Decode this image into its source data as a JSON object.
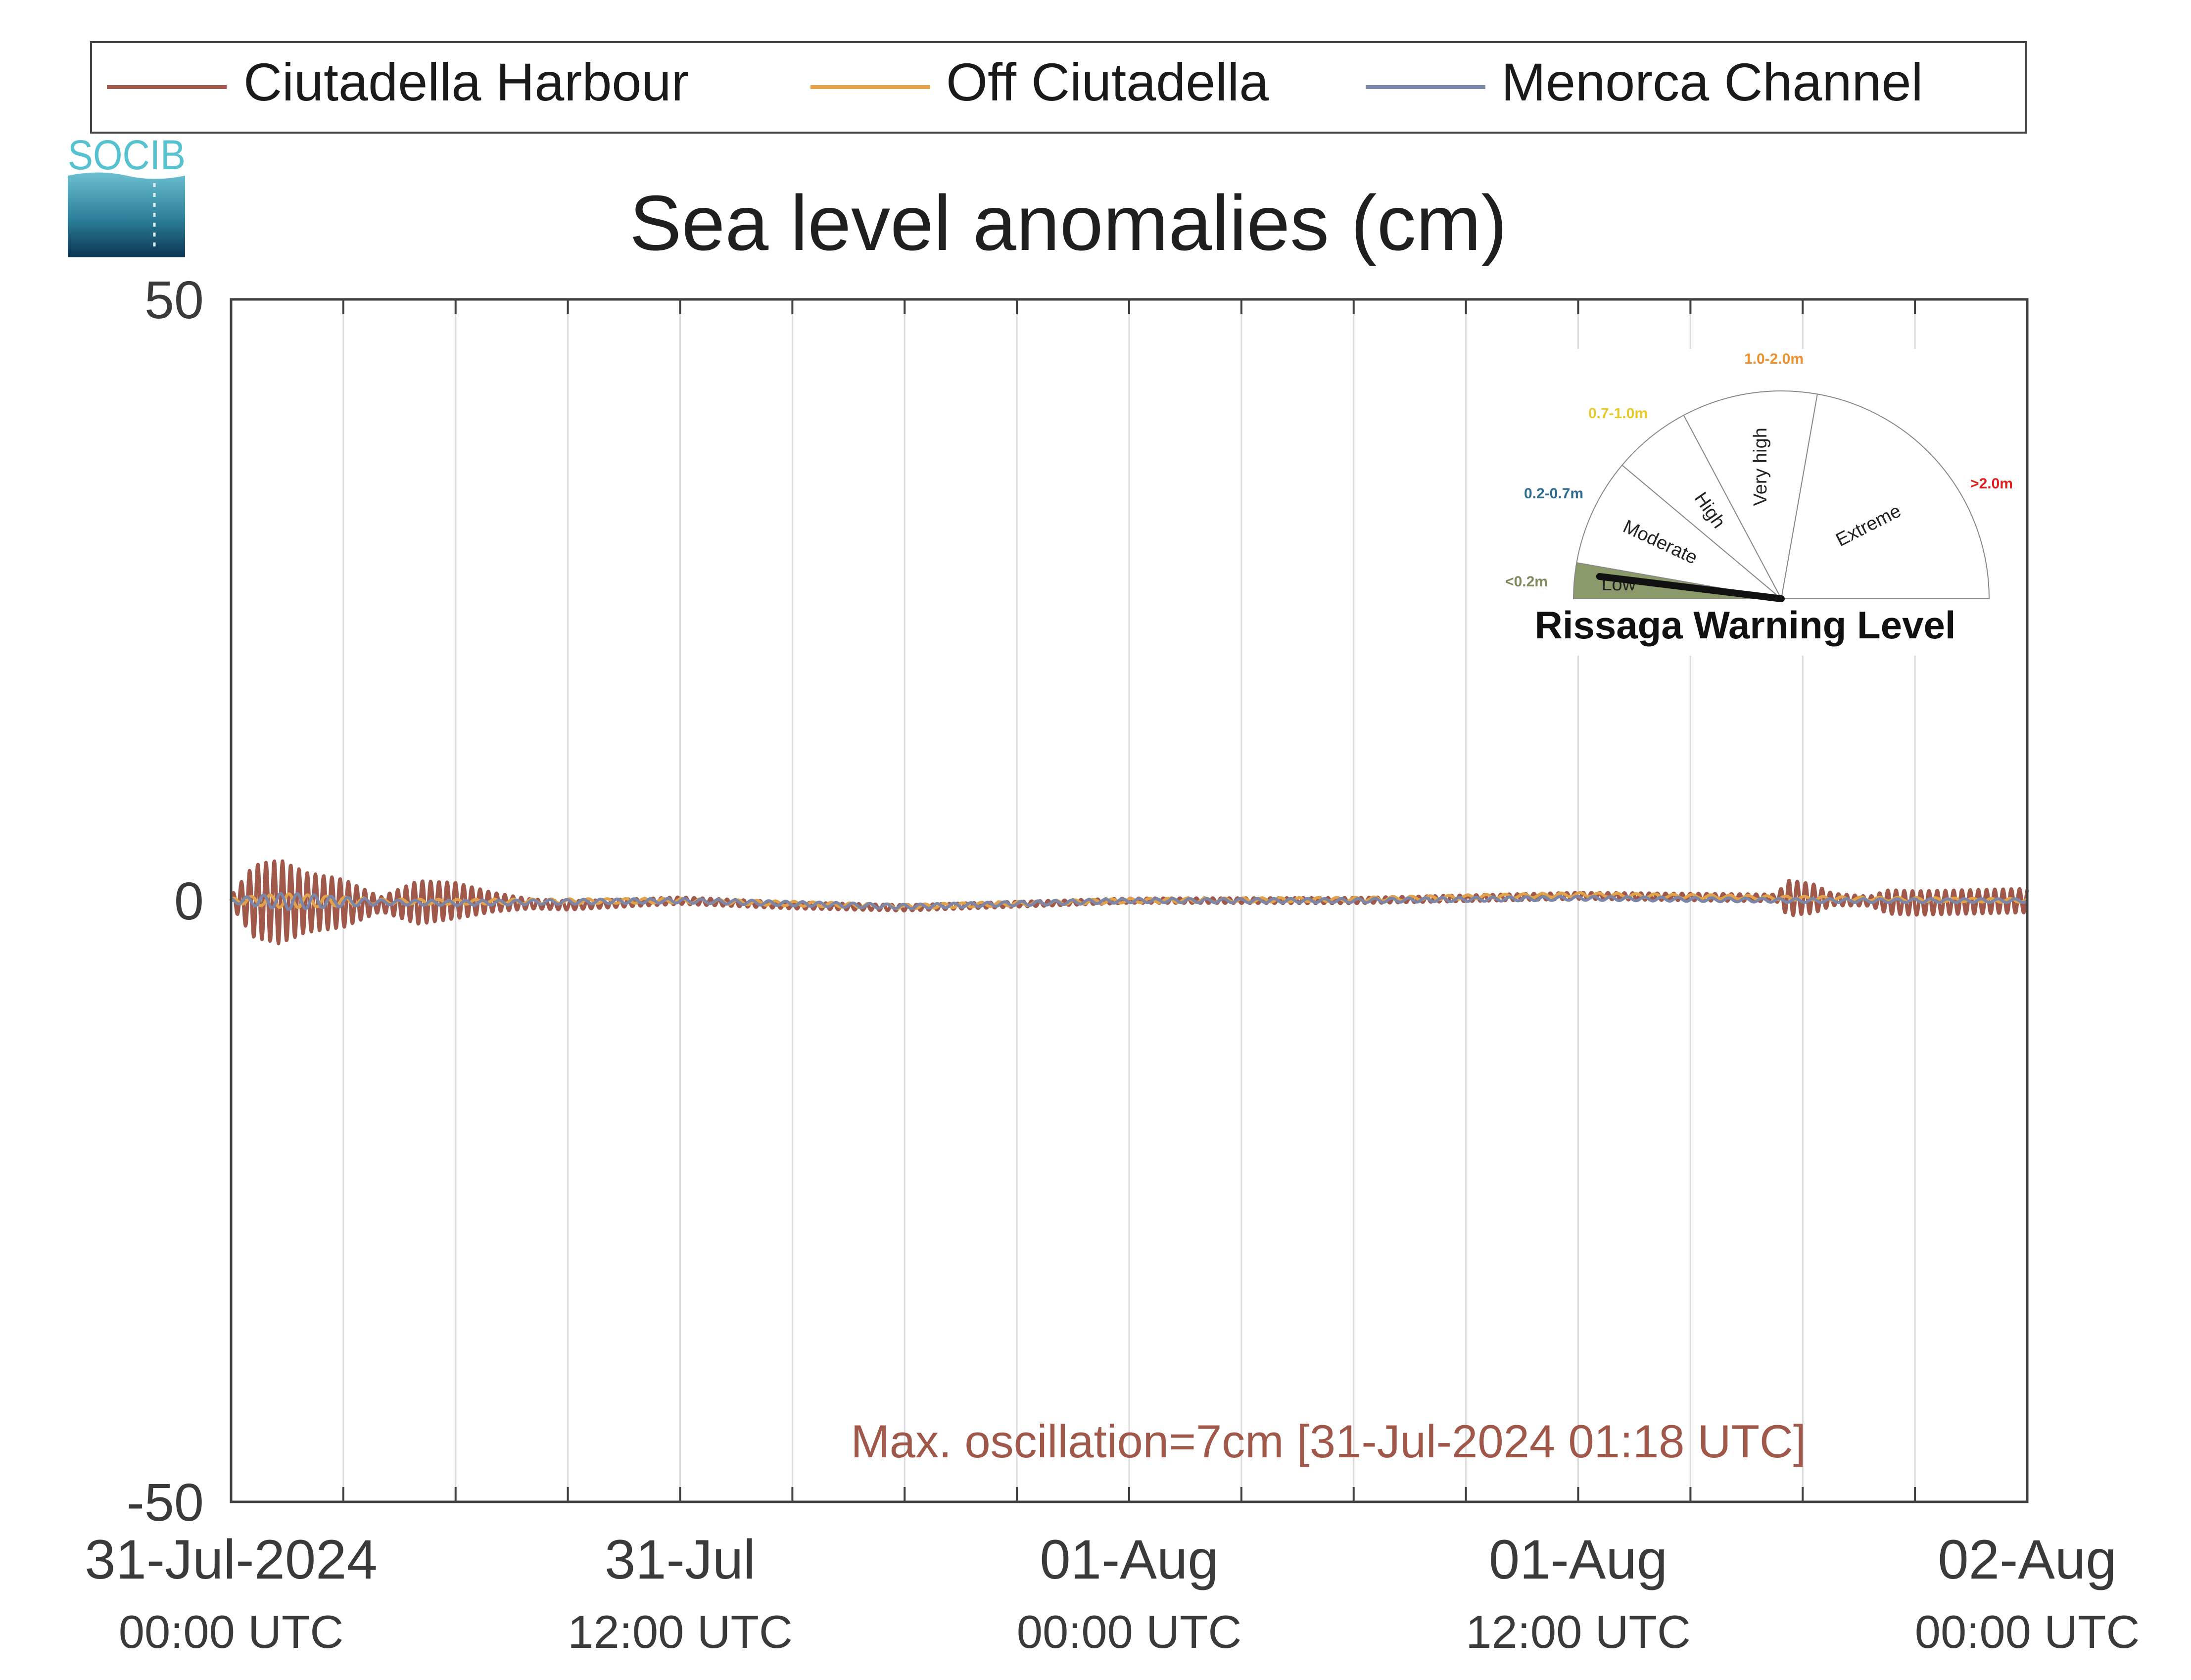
{
  "chart_data": {
    "type": "line",
    "title": "Sea level anomalies (cm)",
    "xlabel": "",
    "ylabel": "",
    "ylim": [
      -50,
      50
    ],
    "yticks": [
      50,
      0,
      -50
    ],
    "ytick_labels": [
      "50",
      "0",
      "-50"
    ],
    "x_range": [
      "2024-07-31 00:00 UTC",
      "2024-08-02 00:00 UTC"
    ],
    "x_range_hours": [
      0,
      48
    ],
    "x_tick_labels": [
      {
        "hour": 0,
        "date": "31-Jul-2024",
        "time": "00:00 UTC"
      },
      {
        "hour": 12,
        "date": "31-Jul",
        "time": "12:00 UTC"
      },
      {
        "hour": 24,
        "date": "01-Aug",
        "time": "00:00 UTC"
      },
      {
        "hour": 36,
        "date": "01-Aug",
        "time": "12:00 UTC"
      },
      {
        "hour": 48,
        "date": "02-Aug",
        "time": "00:00 UTC"
      }
    ],
    "x_gridline_hours": [
      3,
      6,
      9,
      12,
      15,
      18,
      21,
      24,
      27,
      30,
      33,
      36,
      39,
      42,
      45
    ],
    "grid": "vertical",
    "legend_placement": "top",
    "annotation": "Max. oscillation=7cm [31-Jul-2024 01:18 UTC]",
    "series": [
      {
        "name": "Ciutadella Harbour",
        "color": "#a0584a",
        "baseline": [
          [
            0,
            0
          ],
          [
            4,
            -0.3
          ],
          [
            6,
            0
          ],
          [
            9,
            -0.4
          ],
          [
            12,
            0
          ],
          [
            15,
            -0.4
          ],
          [
            18,
            -0.6
          ],
          [
            21,
            -0.3
          ],
          [
            24,
            0
          ],
          [
            27,
            0
          ],
          [
            30,
            0
          ],
          [
            33,
            0.2
          ],
          [
            36,
            0.4
          ],
          [
            39,
            0.3
          ],
          [
            42,
            0.2
          ],
          [
            45,
            -0.2
          ],
          [
            48,
            0
          ]
        ],
        "amplitude": [
          [
            0,
            0.4
          ],
          [
            0.6,
            3
          ],
          [
            1.3,
            3.5
          ],
          [
            2,
            2.5
          ],
          [
            3,
            2
          ],
          [
            4,
            0.6
          ],
          [
            5,
            1.8
          ],
          [
            6,
            1.5
          ],
          [
            7,
            0.8
          ],
          [
            8,
            0.4
          ],
          [
            11,
            0.3
          ],
          [
            24,
            0.2
          ],
          [
            40,
            0.3
          ],
          [
            41.3,
            0.3
          ],
          [
            41.6,
            1.5
          ],
          [
            42.3,
            1.2
          ],
          [
            42.8,
            0.5
          ],
          [
            43.8,
            0.4
          ],
          [
            44.3,
            1
          ],
          [
            48,
            1
          ]
        ]
      },
      {
        "name": "Off Ciutadella",
        "color": "#e2a24a",
        "baseline": [
          [
            0,
            0
          ],
          [
            6,
            -0.1
          ],
          [
            12,
            0
          ],
          [
            18,
            -0.5
          ],
          [
            24,
            0
          ],
          [
            30,
            0.1
          ],
          [
            36,
            0.5
          ],
          [
            42,
            0.2
          ],
          [
            48,
            0
          ]
        ],
        "amplitude": [
          [
            0,
            0.2
          ],
          [
            1.5,
            0.6
          ],
          [
            4,
            0.2
          ],
          [
            48,
            0.15
          ]
        ]
      },
      {
        "name": "Menorca Channel",
        "color": "#7c86a8",
        "baseline": [
          [
            0,
            0
          ],
          [
            6,
            -0.2
          ],
          [
            12,
            0
          ],
          [
            18,
            -0.5
          ],
          [
            24,
            0
          ],
          [
            30,
            0
          ],
          [
            36,
            0.2
          ],
          [
            42,
            0
          ],
          [
            48,
            0
          ]
        ],
        "amplitude": [
          [
            0,
            0.2
          ],
          [
            1.5,
            0.7
          ],
          [
            4,
            0.2
          ],
          [
            48,
            0.15
          ]
        ]
      }
    ]
  },
  "logo": {
    "text": "SOCIB"
  },
  "gauge": {
    "title": "Rissaga Warning Level",
    "current_level": "Low",
    "sectors": [
      {
        "label": "Low",
        "range": "<0.2m",
        "color": "#8a9a6a",
        "range_color": "#7f8a5e"
      },
      {
        "label": "Moderate",
        "range": "0.2-0.7m",
        "color": "#ffffff",
        "range_color": "#2f6e8e"
      },
      {
        "label": "High",
        "range": "0.7-1.0m",
        "color": "#ffffff",
        "range_color": "#e8c92a"
      },
      {
        "label": "Very high",
        "range": "1.0-2.0m",
        "color": "#ffffff",
        "range_color": "#f0902a"
      },
      {
        "label": "Extreme",
        "range": ">2.0m",
        "color": "#ffffff",
        "range_color": "#e02020"
      }
    ]
  }
}
